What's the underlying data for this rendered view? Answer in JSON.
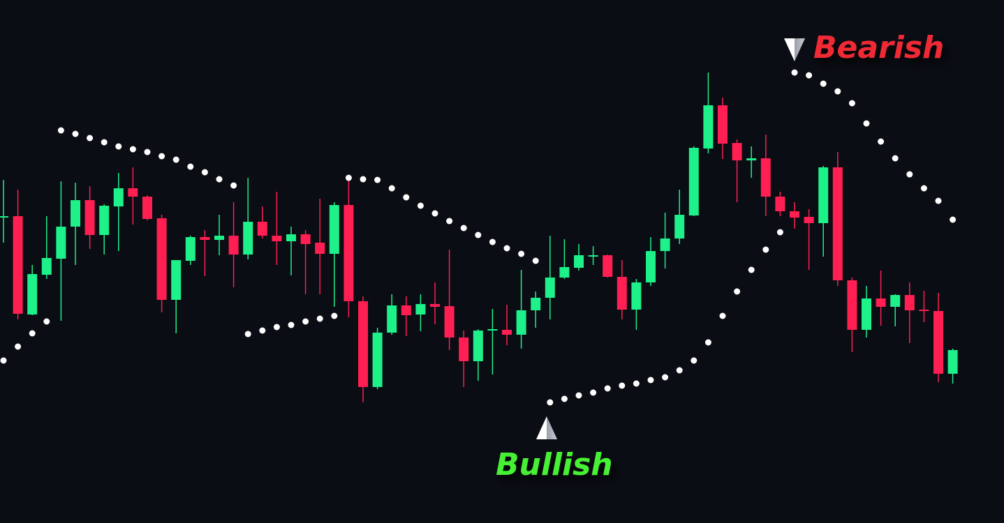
{
  "chart_data": {
    "type": "candlestick",
    "ylim": [
      0,
      750
    ],
    "up_color": "#1ef08a",
    "down_color": "#ff1f52",
    "sar_color": "#ffffff",
    "open": [
      440,
      440,
      299,
      356,
      379,
      425,
      463,
      413,
      454,
      480,
      468,
      437,
      320,
      376,
      410,
      406,
      412,
      385,
      432,
      412,
      404,
      414,
      402,
      386,
      456,
      318,
      195,
      273,
      312,
      299,
      314,
      311,
      266,
      232,
      276,
      277,
      270,
      305,
      323,
      352,
      366,
      382,
      384,
      353,
      306,
      345,
      390,
      408,
      441,
      537,
      599,
      545,
      520,
      523,
      468,
      447,
      439,
      430,
      510,
      348,
      277,
      322,
      310,
      327,
      306,
      304,
      214
    ],
    "high": [
      492,
      478,
      370,
      440,
      490,
      488,
      483,
      457,
      502,
      510,
      470,
      442,
      377,
      412,
      420,
      442,
      460,
      495,
      454,
      475,
      425,
      420,
      465,
      460,
      492,
      325,
      280,
      328,
      325,
      328,
      345,
      392,
      276,
      278,
      307,
      313,
      363,
      332,
      412,
      407,
      400,
      397,
      385,
      377,
      350,
      410,
      445,
      478,
      540,
      646,
      610,
      550,
      540,
      557,
      475,
      460,
      450,
      512,
      532,
      352,
      340,
      362,
      328,
      345,
      333,
      330,
      250
    ],
    "low": [
      402,
      292,
      298,
      350,
      290,
      370,
      393,
      385,
      390,
      428,
      434,
      302,
      272,
      370,
      354,
      384,
      338,
      378,
      408,
      370,
      355,
      328,
      328,
      310,
      295,
      173,
      192,
      270,
      268,
      275,
      285,
      248,
      195,
      204,
      213,
      255,
      250,
      280,
      292,
      350,
      362,
      370,
      352,
      292,
      277,
      340,
      365,
      400,
      440,
      530,
      522,
      460,
      495,
      440,
      440,
      422,
      363,
      382,
      340,
      245,
      266,
      283,
      282,
      258,
      288,
      202,
      200
    ],
    "close": [
      440,
      300,
      357,
      380,
      425,
      463,
      413,
      455,
      480,
      468,
      436,
      320,
      377,
      410,
      406,
      412,
      385,
      432,
      412,
      404,
      414,
      400,
      386,
      456,
      318,
      195,
      273,
      312,
      298,
      314,
      310,
      266,
      232,
      276,
      278,
      270,
      305,
      323,
      352,
      367,
      384,
      384,
      353,
      306,
      345,
      390,
      408,
      442,
      538,
      599,
      544,
      520,
      523,
      468,
      447,
      438,
      430,
      510,
      348,
      277,
      322,
      310,
      327,
      305,
      304,
      214,
      248
    ],
    "sar": [
      233,
      253,
      272,
      289,
      563,
      558,
      552,
      546,
      540,
      536,
      532,
      526,
      521,
      511,
      503,
      493,
      484,
      271,
      276,
      281,
      284,
      289,
      293,
      297,
      495,
      493,
      492,
      480,
      467,
      455,
      444,
      433,
      423,
      413,
      403,
      394,
      386,
      376,
      173,
      178,
      183,
      187,
      193,
      197,
      200,
      205,
      209,
      219,
      233,
      259,
      297,
      332,
      363,
      392,
      417,
      646,
      642,
      630,
      619,
      602,
      573,
      547,
      523,
      500,
      480,
      462,
      435
    ],
    "annotations": [
      {
        "text": "Bearish",
        "color": "#f02a35"
      },
      {
        "text": "Bullish",
        "color": "#46f036"
      }
    ]
  }
}
